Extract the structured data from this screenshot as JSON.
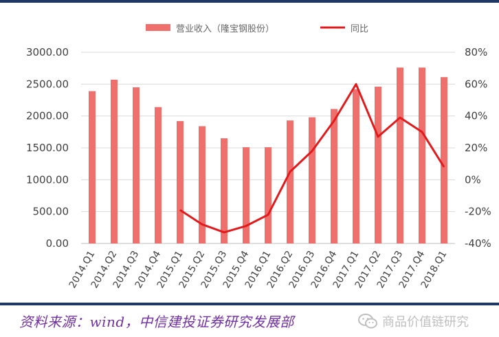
{
  "chart_data": {
    "type": "bar",
    "categories": [
      "2014.Q1",
      "2014.Q2",
      "2014.Q3",
      "2014.Q4",
      "2015.Q1",
      "2015.Q2",
      "2015.Q3",
      "2015.Q4",
      "2016.Q1",
      "2016.Q2",
      "2016.Q3",
      "2016.Q4",
      "2017.Q1",
      "2017.Q2",
      "2017.Q3",
      "2017.Q4",
      "2018.Q1"
    ],
    "series": [
      {
        "name": "营业收入（隆宝钢股份）",
        "type": "bar",
        "axis": "left",
        "values": [
          2390,
          2570,
          2450,
          2140,
          1920,
          1840,
          1650,
          1510,
          1510,
          1930,
          1980,
          2110,
          2420,
          2460,
          2760,
          2760,
          2610
        ]
      },
      {
        "name": "同比",
        "type": "line",
        "axis": "right",
        "values": [
          null,
          null,
          null,
          null,
          -19,
          -28,
          -33,
          -29,
          -22,
          5,
          18,
          37,
          60,
          27,
          39,
          30,
          8
        ]
      }
    ],
    "y_left": {
      "lim": [
        0,
        3000
      ],
      "ticks": [
        "0.00",
        "500.00",
        "1000.00",
        "1500.00",
        "2000.00",
        "2500.00",
        "3000.00"
      ]
    },
    "y_right": {
      "lim": [
        -40,
        80
      ],
      "ticks": [
        "-40%",
        "-20%",
        "0%",
        "20%",
        "40%",
        "60%",
        "80%"
      ]
    },
    "grid": true,
    "legend_position": "top",
    "colors": {
      "bar": "#ef6f6c",
      "line": "#e31a1c"
    }
  },
  "footer": {
    "source": "资料来源：wind，中信建投证券研究发展部",
    "watermark": "商品价值链研究",
    "watermark_icon": "wechat-icon"
  }
}
